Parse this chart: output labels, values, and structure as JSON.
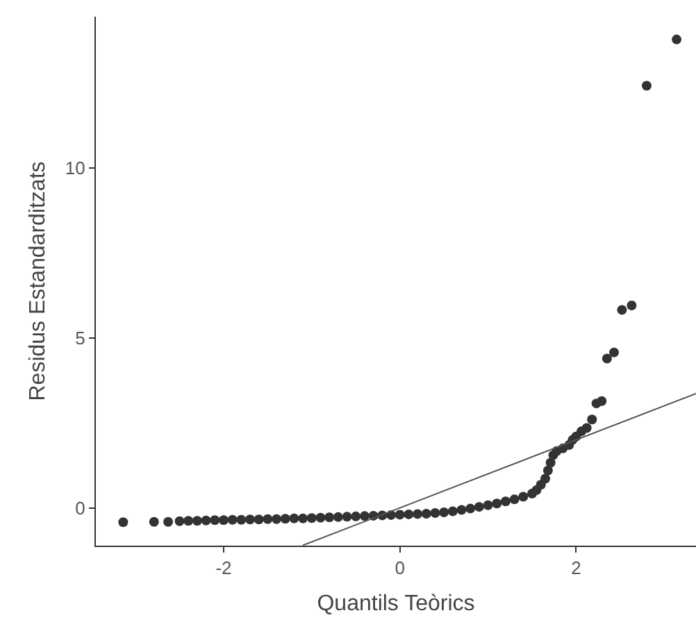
{
  "chart_data": {
    "type": "scatter",
    "xlabel": "Quantils Teòrics",
    "ylabel": "Residus Estandarditzats",
    "xlim": [
      -3.45,
      3.36
    ],
    "ylim": [
      -1.11,
      14.44
    ],
    "xticks": [
      -2,
      0,
      2
    ],
    "yticks": [
      0,
      5,
      10
    ],
    "marker": "circle",
    "series": [
      {
        "color": "#333333",
        "x": [
          -3.14,
          -2.79,
          -2.63,
          -2.5,
          -2.4,
          -2.3,
          -2.2,
          -2.1,
          -2.0,
          -1.9,
          -1.8,
          -1.7,
          -1.6,
          -1.5,
          -1.4,
          -1.3,
          -1.2,
          -1.1,
          -1.0,
          -0.9,
          -0.8,
          -0.7,
          -0.6,
          -0.5,
          -0.4,
          -0.3,
          -0.2,
          -0.1,
          0,
          0.1,
          0.2,
          0.3,
          0.4,
          0.5,
          0.6,
          0.7,
          0.8,
          0.9,
          1.0,
          1.1,
          1.2,
          1.3,
          1.4,
          1.5,
          1.55,
          1.6,
          1.65,
          1.68,
          1.71,
          1.74,
          1.78,
          1.85,
          1.92,
          1.96,
          2.0,
          2.06,
          2.12,
          2.18,
          2.23,
          2.29,
          2.35,
          2.43,
          2.52,
          2.63,
          2.8,
          3.14
        ],
        "values": [
          -0.42,
          -0.41,
          -0.41,
          -0.39,
          -0.38,
          -0.38,
          -0.37,
          -0.36,
          -0.36,
          -0.35,
          -0.35,
          -0.34,
          -0.34,
          -0.33,
          -0.33,
          -0.32,
          -0.31,
          -0.31,
          -0.3,
          -0.29,
          -0.28,
          -0.27,
          -0.26,
          -0.25,
          -0.24,
          -0.23,
          -0.22,
          -0.21,
          -0.2,
          -0.19,
          -0.18,
          -0.17,
          -0.15,
          -0.13,
          -0.1,
          -0.06,
          -0.02,
          0.03,
          0.08,
          0.13,
          0.19,
          0.25,
          0.33,
          0.42,
          0.52,
          0.68,
          0.86,
          1.1,
          1.33,
          1.55,
          1.67,
          1.75,
          1.85,
          2.0,
          2.1,
          2.25,
          2.35,
          2.6,
          3.07,
          3.14,
          4.39,
          4.57,
          5.82,
          5.95,
          12.41,
          13.77
        ]
      },
      {
        "type": "line",
        "color": "#555555",
        "x": [
          -1.1,
          3.36
        ],
        "values": [
          -1.1,
          3.36
        ],
        "marker": "none"
      }
    ]
  }
}
